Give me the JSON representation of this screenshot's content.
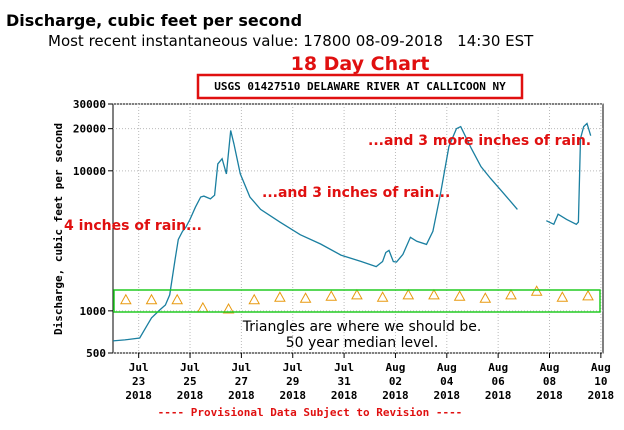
{
  "chart_data": {
    "type": "line",
    "title": "Discharge, cubic feet per second",
    "subtitle": "Most recent instantaneous value: 17800 08-09-2018   14:30 EST",
    "chart_label": "18 Day Chart",
    "station": "USGS 01427510 DELAWARE RIVER AT CALLICOON NY",
    "y_label": "Discharge, cubic feet per second",
    "footer": "---- Provisional Data Subject to Revision ----",
    "annotations": [
      "4 inches of rain...",
      "...and 3 inches of rain...",
      "...and 3 more inches of rain.",
      "Triangles are where we should be.",
      "50 year median level."
    ],
    "log_y": true,
    "grid": true,
    "xlim": [
      "2018-07-22 00:00",
      "2018-08-10 02:00"
    ],
    "ylim": [
      500,
      30000
    ],
    "yticks": [
      500,
      1000,
      10000,
      20000,
      30000
    ],
    "xticks": [
      {
        "value": "2018-07-23",
        "label": [
          "Jul",
          "23",
          "2018"
        ]
      },
      {
        "value": "2018-07-25",
        "label": [
          "Jul",
          "25",
          "2018"
        ]
      },
      {
        "value": "2018-07-27",
        "label": [
          "Jul",
          "27",
          "2018"
        ]
      },
      {
        "value": "2018-07-29",
        "label": [
          "Jul",
          "29",
          "2018"
        ]
      },
      {
        "value": "2018-07-31",
        "label": [
          "Jul",
          "31",
          "2018"
        ]
      },
      {
        "value": "2018-08-02",
        "label": [
          "Aug",
          "02",
          "2018"
        ]
      },
      {
        "value": "2018-08-04",
        "label": [
          "Aug",
          "04",
          "2018"
        ]
      },
      {
        "value": "2018-08-06",
        "label": [
          "Aug",
          "06",
          "2018"
        ]
      },
      {
        "value": "2018-08-08",
        "label": [
          "Aug",
          "08",
          "2018"
        ]
      },
      {
        "value": "2018-08-10",
        "label": [
          "Aug",
          "10",
          "2018"
        ]
      }
    ],
    "series": [
      {
        "name": "Discharge",
        "color": "#1a7fa0",
        "marker": "line",
        "x": [
          "2018-07-22 00:00",
          "2018-07-22 11:00",
          "2018-07-23 01:00",
          "2018-07-23 08:00",
          "2018-07-23 12:00",
          "2018-07-23 20:00",
          "2018-07-24 01:00",
          "2018-07-24 05:00",
          "2018-07-24 10:00",
          "2018-07-24 13:00",
          "2018-07-24 17:00",
          "2018-07-24 20:00",
          "2018-07-25 00:00",
          "2018-07-25 05:00",
          "2018-07-25 10:00",
          "2018-07-25 13:00",
          "2018-07-25 19:00",
          "2018-07-25 23:00",
          "2018-07-26 02:00",
          "2018-07-26 06:00",
          "2018-07-26 10:00",
          "2018-07-26 14:00",
          "2018-07-26 17:00",
          "2018-07-26 23:00",
          "2018-07-27 08:00",
          "2018-07-27 18:00",
          "2018-07-28 12:00",
          "2018-07-29 07:00",
          "2018-07-30 02:00",
          "2018-07-30 21:00",
          "2018-07-31 16:00",
          "2018-08-01 06:00",
          "2018-08-01 12:00",
          "2018-08-01 15:00",
          "2018-08-01 18:00",
          "2018-08-01 22:00",
          "2018-08-02 01:00",
          "2018-08-02 07:00",
          "2018-08-02 14:00",
          "2018-08-02 20:00",
          "2018-08-03 05:00",
          "2018-08-03 11:00",
          "2018-08-03 18:00",
          "2018-08-04 02:00",
          "2018-08-04 09:00",
          "2018-08-04 13:00",
          "2018-08-04 23:00",
          "2018-08-05 08:00",
          "2018-08-05 17:00",
          "2018-08-06 03:00",
          "2018-08-06 12:00",
          "2018-08-06 18:00",
          "2018-08-07 06:00",
          "2018-08-07 21:00",
          "2018-08-08 04:00",
          "2018-08-08 08:00",
          "2018-08-08 16:00",
          "2018-08-09 01:00",
          "2018-08-09 03:00",
          "2018-08-09 05:00",
          "2018-08-09 08:00",
          "2018-08-09 11:00",
          "2018-08-09 14:30"
        ],
        "values": [
          610,
          620,
          640,
          790,
          890,
          1020,
          1100,
          1300,
          2330,
          3240,
          3700,
          3950,
          4500,
          5500,
          6500,
          6600,
          6300,
          6700,
          11200,
          12200,
          9500,
          19400,
          15600,
          9500,
          6500,
          5300,
          4300,
          3500,
          3000,
          2500,
          2250,
          2070,
          2250,
          2610,
          2700,
          2250,
          2230,
          2530,
          3350,
          3140,
          2980,
          3700,
          6800,
          14900,
          20000,
          20700,
          14400,
          10700,
          8800,
          7200,
          6000,
          5300,
          null,
          4400,
          4150,
          4900,
          4500,
          4150,
          4300,
          17000,
          20700,
          21800,
          17800
        ]
      },
      {
        "name": "Median",
        "color": "#e89a10",
        "marker": "triangle",
        "x": [
          "2018-07-22 12:00",
          "2018-07-23 12:00",
          "2018-07-24 12:00",
          "2018-07-25 12:00",
          "2018-07-26 12:00",
          "2018-07-27 12:00",
          "2018-07-28 12:00",
          "2018-07-29 12:00",
          "2018-07-30 12:00",
          "2018-07-31 12:00",
          "2018-08-01 12:00",
          "2018-08-02 12:00",
          "2018-08-03 12:00",
          "2018-08-04 12:00",
          "2018-08-05 12:00",
          "2018-08-06 12:00",
          "2018-08-07 12:00",
          "2018-08-08 12:00",
          "2018-08-09 12:00"
        ],
        "values": [
          1200,
          1200,
          1200,
          1050,
          1030,
          1200,
          1250,
          1230,
          1270,
          1300,
          1250,
          1300,
          1300,
          1270,
          1230,
          1300,
          1380,
          1250,
          1280
        ]
      }
    ]
  }
}
